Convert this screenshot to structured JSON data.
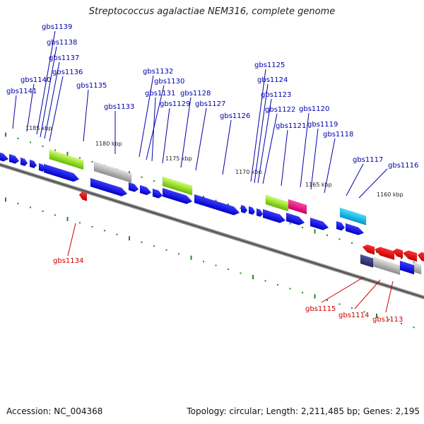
{
  "title": "Streptococcus agalactiae NEM316, complete genome",
  "footer": {
    "accession": "Accession: NC_004368",
    "summary": "Topology: circular; Length: 2,211,485 bp; Genes: 2,195"
  },
  "colors": {
    "forward": "#0000ee",
    "reverse": "#ee0000",
    "label_forward": "#0000aa",
    "label_reverse": "#cc0000",
    "tick": "#228822",
    "backbone": "#888888"
  },
  "ticks": [
    "1185 kbp",
    "1180 kbp",
    "1175 kbp",
    "1170 kbp",
    "1165 kbp",
    "1160 kbp"
  ],
  "forward_labels": [
    "gbs1139",
    "gbs1138",
    "gbs1137",
    "gbs1140",
    "gbs1136",
    "gbs1141",
    "gbs1135",
    "gbs1133",
    "gbs1132",
    "gbs1130",
    "gbs1131",
    "gbs1128",
    "gbs1129",
    "gbs1127",
    "gbs1126",
    "gbs1125",
    "gbs1124",
    "gbs1123",
    "gbs1122",
    "gbs1120",
    "gbs1121",
    "gbs1119",
    "gbs1118",
    "gbs1117",
    "gbs1116"
  ],
  "reverse_labels": [
    "gbs1134",
    "gbs1115",
    "gbs1114",
    "gbs1113"
  ]
}
